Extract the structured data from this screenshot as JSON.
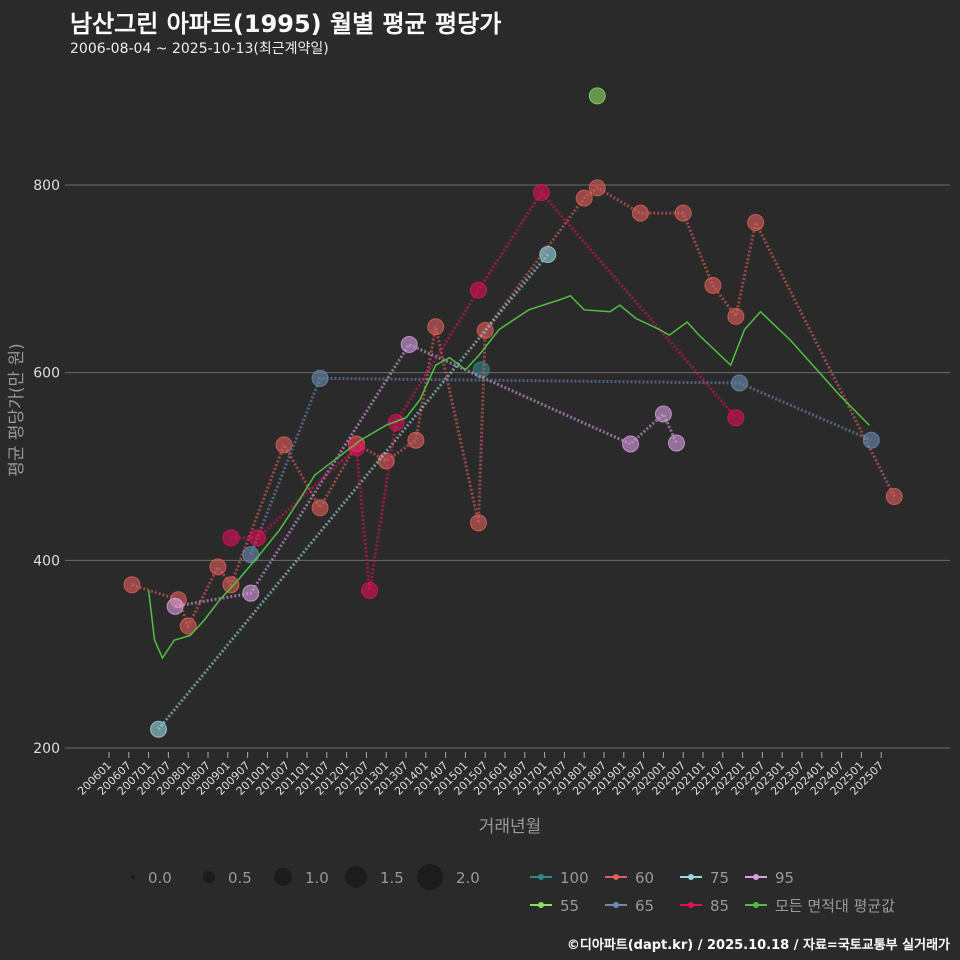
{
  "title": "남산그린 아파트(1995) 월별 평균 평당가",
  "subtitle": "2006-08-04 ~ 2025-10-13(최근계약일)",
  "caption": "©디아파트(dapt.kr) / 2025.10.18 / 자료=국토교통부 실거래가",
  "chart_data": {
    "type": "line",
    "xlabel": "거래년월",
    "ylabel": "평균 평당가(만 원)",
    "ylim": [
      190,
      920
    ],
    "xlim": [
      2005.8,
      2026.3
    ],
    "yticks": [
      200,
      400,
      600,
      800
    ],
    "xticks": [
      "200601",
      "200607",
      "200701",
      "200707",
      "200801",
      "200807",
      "200901",
      "200907",
      "201001",
      "201007",
      "201101",
      "201107",
      "201201",
      "201207",
      "201301",
      "201307",
      "201401",
      "201407",
      "201501",
      "201507",
      "201601",
      "201607",
      "201701",
      "201707",
      "201801",
      "201807",
      "201901",
      "201907",
      "202001",
      "202007",
      "202101",
      "202107",
      "202201",
      "202207",
      "202301",
      "202307",
      "202401",
      "202407",
      "202501",
      "202507"
    ],
    "grid": true,
    "size_legend": {
      "title": "",
      "values": [
        "0.0",
        "0.5",
        "1.0",
        "1.5",
        "2.0"
      ]
    },
    "series": [
      {
        "name": "100",
        "color": "#2e8b8b",
        "points": [
          [
            2015.4,
            603
          ]
        ]
      },
      {
        "name": "60",
        "color": "#e0605a",
        "points": [
          [
            2006.58,
            374
          ],
          [
            2007.75,
            358
          ],
          [
            2008.0,
            330
          ],
          [
            2008.75,
            393
          ],
          [
            2009.08,
            374
          ],
          [
            2010.42,
            523
          ],
          [
            2011.33,
            456
          ],
          [
            2012.25,
            524
          ],
          [
            2013.0,
            506
          ],
          [
            2013.75,
            528
          ],
          [
            2014.25,
            649
          ],
          [
            2015.33,
            440
          ],
          [
            2015.5,
            645
          ],
          [
            2018.0,
            786
          ],
          [
            2018.33,
            797
          ],
          [
            2019.42,
            770
          ],
          [
            2020.5,
            770
          ],
          [
            2021.25,
            693
          ],
          [
            2021.83,
            660
          ],
          [
            2022.33,
            760
          ],
          [
            2025.83,
            468
          ]
        ]
      },
      {
        "name": "75",
        "color": "#9ad8e0",
        "points": [
          [
            2007.25,
            220
          ],
          [
            2017.08,
            726
          ]
        ]
      },
      {
        "name": "95",
        "color": "#d8a0e0",
        "points": [
          [
            2007.67,
            351
          ],
          [
            2009.58,
            365
          ],
          [
            2013.58,
            630
          ],
          [
            2019.17,
            524
          ],
          [
            2020.0,
            556
          ],
          [
            2020.33,
            525
          ]
        ]
      },
      {
        "name": "55",
        "color": "#90e060",
        "points": [
          [
            2018.33,
            895
          ]
        ]
      },
      {
        "name": "65",
        "color": "#6a8cb0",
        "points": [
          [
            2009.58,
            406
          ],
          [
            2011.33,
            594
          ],
          [
            2021.92,
            589
          ],
          [
            2025.25,
            528
          ]
        ]
      },
      {
        "name": "85",
        "color": "#e0105a",
        "points": [
          [
            2009.08,
            424
          ],
          [
            2009.75,
            424
          ],
          [
            2012.25,
            520
          ],
          [
            2012.58,
            368
          ],
          [
            2013.25,
            547
          ],
          [
            2015.33,
            688
          ],
          [
            2016.92,
            792
          ],
          [
            2021.83,
            552
          ]
        ]
      },
      {
        "name": "모든 면적대 평균값",
        "color": "#50c040",
        "line_only": true,
        "points": [
          [
            2007.0,
            368
          ],
          [
            2007.15,
            315
          ],
          [
            2007.35,
            296
          ],
          [
            2007.65,
            315
          ],
          [
            2008.05,
            320
          ],
          [
            2008.4,
            336
          ],
          [
            2008.8,
            358
          ],
          [
            2009.3,
            381
          ],
          [
            2009.8,
            406
          ],
          [
            2010.3,
            432
          ],
          [
            2010.8,
            464
          ],
          [
            2011.2,
            491
          ],
          [
            2011.7,
            507
          ],
          [
            2012.35,
            528
          ],
          [
            2013.0,
            544
          ],
          [
            2013.5,
            552
          ],
          [
            2013.85,
            571
          ],
          [
            2014.25,
            608
          ],
          [
            2014.6,
            616
          ],
          [
            2015.0,
            603
          ],
          [
            2015.35,
            619
          ],
          [
            2015.85,
            646
          ],
          [
            2016.6,
            667
          ],
          [
            2017.4,
            678
          ],
          [
            2017.65,
            682
          ],
          [
            2018.0,
            667
          ],
          [
            2018.65,
            665
          ],
          [
            2018.9,
            672
          ],
          [
            2019.3,
            658
          ],
          [
            2019.9,
            646
          ],
          [
            2020.15,
            640
          ],
          [
            2020.6,
            654
          ],
          [
            2020.9,
            640
          ],
          [
            2021.7,
            608
          ],
          [
            2022.05,
            646
          ],
          [
            2022.45,
            665
          ],
          [
            2023.2,
            635
          ],
          [
            2024.45,
            576
          ],
          [
            2025.2,
            544
          ]
        ]
      }
    ]
  }
}
